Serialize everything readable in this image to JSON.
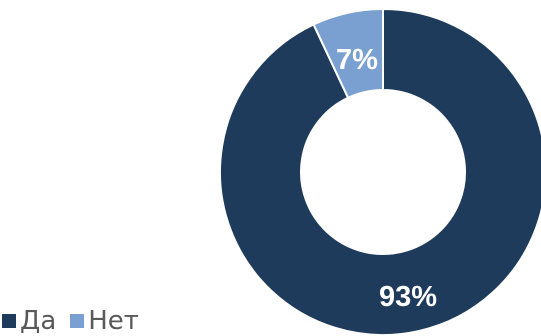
{
  "chart_data": {
    "type": "pie",
    "style": "donut",
    "categories": [
      "Да",
      "Нет"
    ],
    "values": [
      93,
      7
    ],
    "labels": [
      "93%",
      "7%"
    ],
    "colors": [
      "#1f3b5c",
      "#7a9fd1"
    ],
    "legend_position": "bottom-left"
  }
}
